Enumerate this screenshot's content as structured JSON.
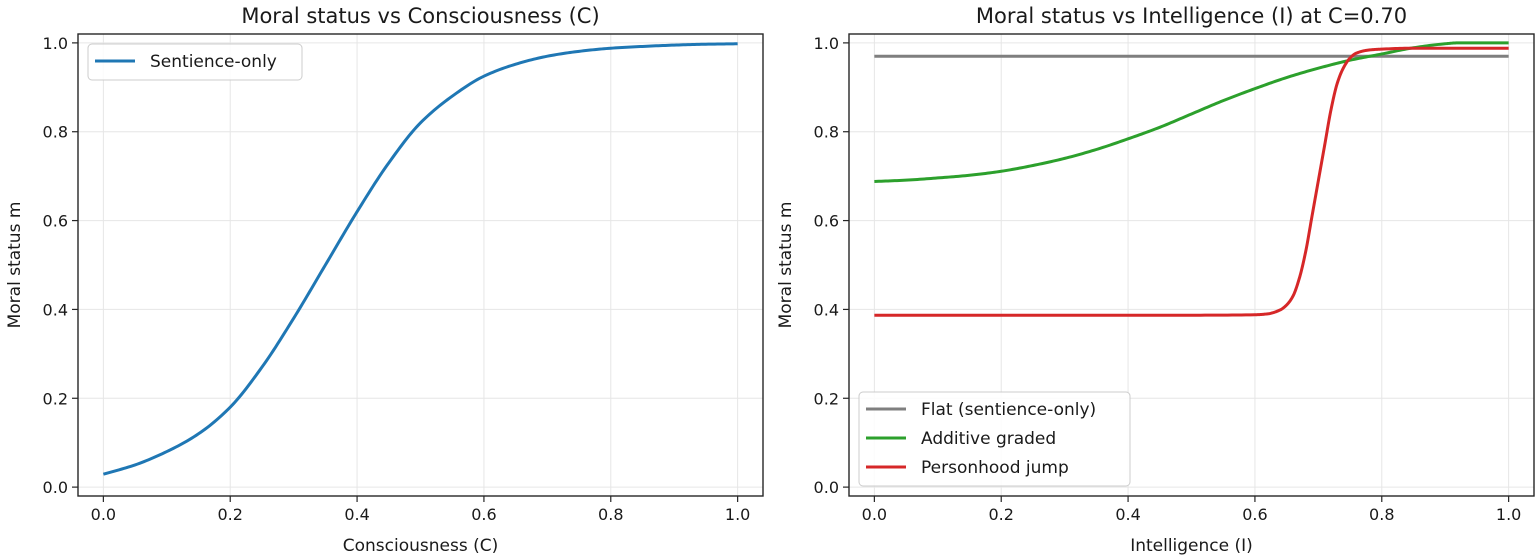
{
  "chart_data": [
    {
      "type": "line",
      "title": "Moral status vs Consciousness (C)",
      "xlabel": "Consciousness (C)",
      "ylabel": "Moral status m",
      "xlim": [
        -0.04,
        1.04
      ],
      "ylim": [
        -0.02,
        1.02
      ],
      "xticks": [
        "0.0",
        "0.2",
        "0.4",
        "0.6",
        "0.8",
        "1.0"
      ],
      "yticks": [
        "0.0",
        "0.2",
        "0.4",
        "0.6",
        "0.8",
        "1.0"
      ],
      "grid": true,
      "legend_position": "upper-left",
      "series": [
        {
          "name": "Sentience-only",
          "color": "#1f77b4",
          "x": [
            0.0,
            0.05,
            0.1,
            0.15,
            0.2,
            0.25,
            0.3,
            0.35,
            0.4,
            0.45,
            0.5,
            0.55,
            0.6,
            0.65,
            0.7,
            0.75,
            0.8,
            0.85,
            0.9,
            0.95,
            1.0
          ],
          "y": [
            0.029,
            0.05,
            0.08,
            0.12,
            0.18,
            0.27,
            0.38,
            0.5,
            0.62,
            0.73,
            0.82,
            0.88,
            0.925,
            0.952,
            0.97,
            0.981,
            0.988,
            0.992,
            0.995,
            0.997,
            0.998
          ]
        }
      ]
    },
    {
      "type": "line",
      "title": "Moral status vs Intelligence (I) at C=0.70",
      "xlabel": "Intelligence (I)",
      "ylabel": "Moral status m",
      "xlim": [
        -0.04,
        1.04
      ],
      "ylim": [
        -0.02,
        1.02
      ],
      "xticks": [
        "0.0",
        "0.2",
        "0.4",
        "0.6",
        "0.8",
        "1.0"
      ],
      "yticks": [
        "0.0",
        "0.2",
        "0.4",
        "0.6",
        "0.8",
        "1.0"
      ],
      "grid": true,
      "legend_position": "lower-left",
      "series": [
        {
          "name": "Flat (sentience-only)",
          "color": "#7f7f7f",
          "x": [
            0.0,
            1.0
          ],
          "y": [
            0.97,
            0.97
          ]
        },
        {
          "name": "Additive graded",
          "color": "#2ca02c",
          "x": [
            0.0,
            0.05,
            0.1,
            0.15,
            0.2,
            0.25,
            0.3,
            0.35,
            0.4,
            0.45,
            0.5,
            0.55,
            0.6,
            0.65,
            0.7,
            0.75,
            0.8,
            0.85,
            0.9,
            0.92,
            0.95,
            1.0
          ],
          "y": [
            0.688,
            0.691,
            0.696,
            0.702,
            0.711,
            0.724,
            0.74,
            0.76,
            0.784,
            0.81,
            0.84,
            0.87,
            0.897,
            0.922,
            0.943,
            0.961,
            0.975,
            0.989,
            0.998,
            1.0,
            1.0,
            1.0
          ]
        },
        {
          "name": "Personhood jump",
          "color": "#d62728",
          "x": [
            0.0,
            0.5,
            0.6,
            0.62,
            0.64,
            0.65,
            0.66,
            0.67,
            0.68,
            0.69,
            0.7,
            0.71,
            0.72,
            0.73,
            0.74,
            0.75,
            0.76,
            0.78,
            0.8,
            0.85,
            1.0
          ],
          "y": [
            0.387,
            0.387,
            0.388,
            0.39,
            0.399,
            0.41,
            0.43,
            0.47,
            0.53,
            0.61,
            0.69,
            0.77,
            0.85,
            0.91,
            0.945,
            0.966,
            0.977,
            0.984,
            0.986,
            0.988,
            0.988
          ]
        }
      ]
    }
  ]
}
